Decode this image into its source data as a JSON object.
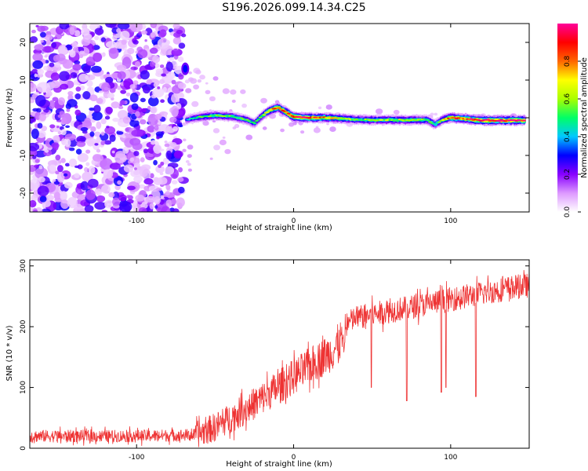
{
  "title": "S196.2026.099.14.34.C25",
  "chart_data": [
    {
      "type": "heatmap",
      "xlabel": "Height of straight line (km)",
      "ylabel": "Frequency (Hz)",
      "xlim": [
        -168,
        150
      ],
      "ylim": [
        -25,
        25
      ],
      "xticks": [
        -100,
        0,
        100
      ],
      "xtick_labels": [
        "-100",
        "0",
        "100"
      ],
      "yticks": [
        -20,
        -10,
        0,
        10,
        20
      ],
      "ytick_labels": [
        "-20",
        "-10",
        "0",
        "10",
        "20"
      ],
      "colorbar": {
        "label": "Normalized spectral amplitude",
        "range": [
          0,
          1
        ],
        "ticks": [
          0.0,
          0.2,
          0.4,
          0.6,
          0.8
        ],
        "tick_labels": [
          "0.0",
          "0.2",
          "0.4",
          "0.6",
          "0.8"
        ],
        "colors": [
          "#ffffff",
          "#dd99ff",
          "#8800ff",
          "#0000ff",
          "#00c8ff",
          "#00ff66",
          "#aaff00",
          "#ffff00",
          "#ff6600",
          "#ff0000",
          "#ff0099"
        ]
      },
      "noise_region": [
        -168,
        -70
      ],
      "ridge": {
        "x": [
          -68,
          -60,
          -50,
          -40,
          -30,
          -25,
          -20,
          -15,
          -10,
          -5,
          0,
          10,
          20,
          30,
          40,
          50,
          60,
          70,
          80,
          85,
          90,
          95,
          100,
          110,
          120,
          130,
          140,
          148
        ],
        "y": [
          -0.5,
          0.2,
          0.6,
          0.4,
          -0.5,
          -1.5,
          0.5,
          2.0,
          2.8,
          1.5,
          0.2,
          0.0,
          0.0,
          -0.2,
          -0.5,
          -0.6,
          -0.6,
          -0.6,
          -0.6,
          -0.5,
          -1.8,
          -0.5,
          0.0,
          -0.3,
          -0.7,
          -0.7,
          -0.7,
          -0.7
        ],
        "amp": [
          0.35,
          0.5,
          0.55,
          0.55,
          0.5,
          0.45,
          0.55,
          0.75,
          0.85,
          0.8,
          0.95,
          0.9,
          0.8,
          0.65,
          0.55,
          0.6,
          0.6,
          0.6,
          0.6,
          0.55,
          0.5,
          0.6,
          0.9,
          0.85,
          0.95,
          0.95,
          0.95,
          0.9
        ]
      },
      "isolated_spot": {
        "x": -69,
        "y": 13,
        "amp": 0.3
      }
    },
    {
      "type": "line",
      "xlabel": "Height of straight line (km)",
      "ylabel": "SNR (10 * v/v)",
      "xlim": [
        -168,
        150
      ],
      "ylim": [
        0,
        310
      ],
      "xticks": [
        -100,
        0,
        100
      ],
      "xtick_labels": [
        "-100",
        "0",
        "100"
      ],
      "yticks": [
        0,
        100,
        200,
        300
      ],
      "ytick_labels": [
        "0",
        "100",
        "200",
        "300"
      ],
      "color": "#ee3333",
      "trend": {
        "x": [
          -168,
          -100,
          -62,
          -50,
          -30,
          -10,
          10,
          25,
          32,
          34,
          40,
          60,
          80,
          100,
          120,
          140,
          150
        ],
        "y": [
          20,
          20,
          22,
          35,
          65,
          100,
          135,
          160,
          185,
          205,
          215,
          225,
          235,
          245,
          255,
          265,
          268
        ]
      },
      "dips": [
        {
          "x": 49.5,
          "y": 100
        },
        {
          "x": 72,
          "y": 78
        },
        {
          "x": 94,
          "y": 92
        },
        {
          "x": 97,
          "y": 100
        },
        {
          "x": 116,
          "y": 85
        }
      ]
    }
  ]
}
